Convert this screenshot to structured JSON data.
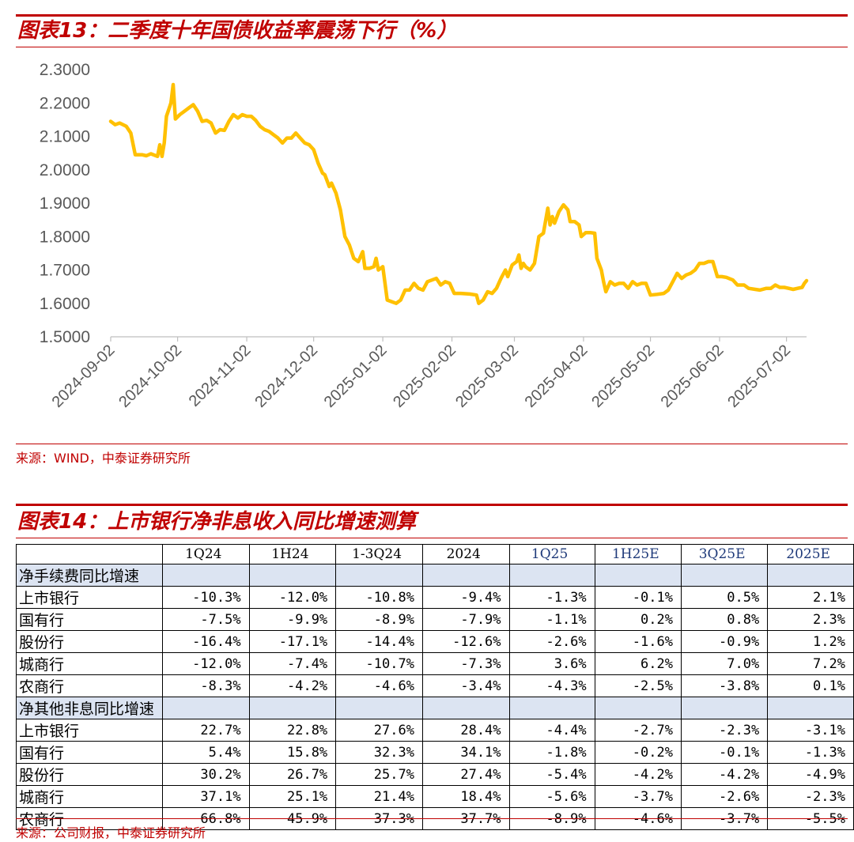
{
  "figure1": {
    "title": "图表13：二季度十年国债收益率震荡下行（%）",
    "source": "来源：WIND，中泰证券研究所"
  },
  "chart_data": {
    "type": "line",
    "series": [
      {
        "name": "",
        "color": "#ffc000",
        "values": [
          [
            "2024-09-02",
            2.145
          ],
          [
            "2024-09-04",
            2.135
          ],
          [
            "2024-09-06",
            2.14
          ],
          [
            "2024-09-09",
            2.13
          ],
          [
            "2024-09-11",
            2.11
          ],
          [
            "2024-09-13",
            2.045
          ],
          [
            "2024-09-16",
            2.045
          ],
          [
            "2024-09-18",
            2.042
          ],
          [
            "2024-09-20",
            2.048
          ],
          [
            "2024-09-23",
            2.04
          ],
          [
            "2024-09-24",
            2.075
          ],
          [
            "2024-09-25",
            2.04
          ],
          [
            "2024-09-26",
            2.08
          ],
          [
            "2024-09-27",
            2.16
          ],
          [
            "2024-09-29",
            2.2
          ],
          [
            "2024-09-30",
            2.255
          ],
          [
            "2024-10-01",
            2.152
          ],
          [
            "2024-10-03",
            2.165
          ],
          [
            "2024-10-05",
            2.175
          ],
          [
            "2024-10-07",
            2.185
          ],
          [
            "2024-10-09",
            2.195
          ],
          [
            "2024-10-11",
            2.175
          ],
          [
            "2024-10-13",
            2.145
          ],
          [
            "2024-10-15",
            2.148
          ],
          [
            "2024-10-17",
            2.14
          ],
          [
            "2024-10-19",
            2.11
          ],
          [
            "2024-10-21",
            2.12
          ],
          [
            "2024-10-23",
            2.118
          ],
          [
            "2024-10-25",
            2.145
          ],
          [
            "2024-10-27",
            2.165
          ],
          [
            "2024-10-29",
            2.155
          ],
          [
            "2024-10-31",
            2.165
          ],
          [
            "2024-11-02",
            2.16
          ],
          [
            "2024-11-04",
            2.16
          ],
          [
            "2024-11-06",
            2.148
          ],
          [
            "2024-11-08",
            2.13
          ],
          [
            "2024-11-10",
            2.12
          ],
          [
            "2024-11-12",
            2.115
          ],
          [
            "2024-11-14",
            2.105
          ],
          [
            "2024-11-16",
            2.095
          ],
          [
            "2024-11-18",
            2.08
          ],
          [
            "2024-11-20",
            2.095
          ],
          [
            "2024-11-22",
            2.095
          ],
          [
            "2024-11-24",
            2.11
          ],
          [
            "2024-11-26",
            2.095
          ],
          [
            "2024-11-28",
            2.08
          ],
          [
            "2024-11-30",
            2.075
          ],
          [
            "2024-12-02",
            2.06
          ],
          [
            "2024-12-04",
            2.02
          ],
          [
            "2024-12-06",
            1.99
          ],
          [
            "2024-12-07",
            1.985
          ],
          [
            "2024-12-09",
            1.95
          ],
          [
            "2024-12-10",
            1.96
          ],
          [
            "2024-12-12",
            1.93
          ],
          [
            "2024-12-14",
            1.88
          ],
          [
            "2024-12-16",
            1.8
          ],
          [
            "2024-12-18",
            1.775
          ],
          [
            "2024-12-20",
            1.735
          ],
          [
            "2024-12-22",
            1.725
          ],
          [
            "2024-12-24",
            1.755
          ],
          [
            "2024-12-25",
            1.705
          ],
          [
            "2024-12-27",
            1.705
          ],
          [
            "2024-12-29",
            1.71
          ],
          [
            "2024-12-30",
            1.735
          ],
          [
            "2024-12-31",
            1.7
          ],
          [
            "2025-01-02",
            1.71
          ],
          [
            "2025-01-03",
            1.66
          ],
          [
            "2025-01-04",
            1.61
          ],
          [
            "2025-01-06",
            1.605
          ],
          [
            "2025-01-08",
            1.6
          ],
          [
            "2025-01-10",
            1.61
          ],
          [
            "2025-01-12",
            1.64
          ],
          [
            "2025-01-14",
            1.64
          ],
          [
            "2025-01-16",
            1.66
          ],
          [
            "2025-01-18",
            1.645
          ],
          [
            "2025-01-20",
            1.64
          ],
          [
            "2025-01-22",
            1.665
          ],
          [
            "2025-01-24",
            1.67
          ],
          [
            "2025-01-26",
            1.675
          ],
          [
            "2025-01-28",
            1.655
          ],
          [
            "2025-01-30",
            1.665
          ],
          [
            "2025-02-01",
            1.66
          ],
          [
            "2025-02-03",
            1.63
          ],
          [
            "2025-02-06",
            1.63
          ],
          [
            "2025-02-10",
            1.628
          ],
          [
            "2025-02-13",
            1.625
          ],
          [
            "2025-02-14",
            1.6
          ],
          [
            "2025-02-16",
            1.61
          ],
          [
            "2025-02-18",
            1.635
          ],
          [
            "2025-02-20",
            1.63
          ],
          [
            "2025-02-22",
            1.645
          ],
          [
            "2025-02-24",
            1.675
          ],
          [
            "2025-02-26",
            1.7
          ],
          [
            "2025-02-27",
            1.68
          ],
          [
            "2025-03-01",
            1.715
          ],
          [
            "2025-03-03",
            1.725
          ],
          [
            "2025-03-04",
            1.745
          ],
          [
            "2025-03-05",
            1.705
          ],
          [
            "2025-03-06",
            1.72
          ],
          [
            "2025-03-07",
            1.71
          ],
          [
            "2025-03-09",
            1.7
          ],
          [
            "2025-03-11",
            1.72
          ],
          [
            "2025-03-13",
            1.8
          ],
          [
            "2025-03-15",
            1.81
          ],
          [
            "2025-03-17",
            1.885
          ],
          [
            "2025-03-18",
            1.835
          ],
          [
            "2025-03-19",
            1.86
          ],
          [
            "2025-03-20",
            1.84
          ],
          [
            "2025-03-22",
            1.875
          ],
          [
            "2025-03-24",
            1.895
          ],
          [
            "2025-03-26",
            1.88
          ],
          [
            "2025-03-27",
            1.845
          ],
          [
            "2025-03-29",
            1.845
          ],
          [
            "2025-03-31",
            1.835
          ],
          [
            "2025-04-01",
            1.8
          ],
          [
            "2025-04-03",
            1.812
          ],
          [
            "2025-04-05",
            1.812
          ],
          [
            "2025-04-07",
            1.81
          ],
          [
            "2025-04-08",
            1.735
          ],
          [
            "2025-04-10",
            1.7
          ],
          [
            "2025-04-11",
            1.665
          ],
          [
            "2025-04-12",
            1.635
          ],
          [
            "2025-04-14",
            1.665
          ],
          [
            "2025-04-16",
            1.655
          ],
          [
            "2025-04-18",
            1.66
          ],
          [
            "2025-04-20",
            1.66
          ],
          [
            "2025-04-22",
            1.645
          ],
          [
            "2025-04-24",
            1.665
          ],
          [
            "2025-04-26",
            1.655
          ],
          [
            "2025-04-28",
            1.66
          ],
          [
            "2025-04-30",
            1.66
          ],
          [
            "2025-05-02",
            1.625
          ],
          [
            "2025-05-05",
            1.627
          ],
          [
            "2025-05-08",
            1.63
          ],
          [
            "2025-05-10",
            1.64
          ],
          [
            "2025-05-12",
            1.665
          ],
          [
            "2025-05-14",
            1.69
          ],
          [
            "2025-05-16",
            1.675
          ],
          [
            "2025-05-18",
            1.685
          ],
          [
            "2025-05-20",
            1.69
          ],
          [
            "2025-05-22",
            1.7
          ],
          [
            "2025-05-24",
            1.72
          ],
          [
            "2025-05-26",
            1.72
          ],
          [
            "2025-05-28",
            1.725
          ],
          [
            "2025-05-30",
            1.725
          ],
          [
            "2025-06-01",
            1.68
          ],
          [
            "2025-06-03",
            1.68
          ],
          [
            "2025-06-05",
            1.678
          ],
          [
            "2025-06-08",
            1.67
          ],
          [
            "2025-06-10",
            1.655
          ],
          [
            "2025-06-13",
            1.655
          ],
          [
            "2025-06-15",
            1.645
          ],
          [
            "2025-06-18",
            1.642
          ],
          [
            "2025-06-20",
            1.64
          ],
          [
            "2025-06-23",
            1.645
          ],
          [
            "2025-06-25",
            1.645
          ],
          [
            "2025-06-27",
            1.655
          ],
          [
            "2025-06-29",
            1.648
          ],
          [
            "2025-07-01",
            1.648
          ],
          [
            "2025-07-03",
            1.645
          ],
          [
            "2025-07-05",
            1.642
          ],
          [
            "2025-07-07",
            1.645
          ],
          [
            "2025-07-09",
            1.648
          ],
          [
            "2025-07-10",
            1.66
          ],
          [
            "2025-07-11",
            1.668
          ]
        ]
      }
    ],
    "x_tick_labels": [
      "2024-09-02",
      "2024-10-02",
      "2024-11-02",
      "2024-12-02",
      "2025-01-02",
      "2025-02-02",
      "2025-03-02",
      "2025-04-02",
      "2025-05-02",
      "2025-06-02",
      "2025-07-02"
    ],
    "y_tick_labels": [
      "2.3000",
      "2.2000",
      "2.1000",
      "2.0000",
      "1.9000",
      "1.8000",
      "1.7000",
      "1.6000",
      "1.5000"
    ],
    "ylim": [
      1.5,
      2.3
    ],
    "xlim": [
      "2024-09-02",
      "2025-07-11"
    ],
    "title": "",
    "xlabel": "",
    "ylabel": "",
    "grid": false,
    "legend": "none"
  },
  "figure2": {
    "title": "图表14：上市银行净非息收入同比增速测算",
    "source": "来源：公司财报，中泰证券研究所",
    "table": {
      "header": [
        "",
        "1Q24",
        "1H24",
        "1-3Q24",
        "2024",
        "1Q25",
        "1H25E",
        "3Q25E",
        "2025E"
      ],
      "groups": [
        {
          "label": "净手续费同比增速",
          "rows": [
            {
              "label": "上市银行",
              "values": [
                "-10.3%",
                "-12.0%",
                "-10.8%",
                "-9.4%",
                "-1.3%",
                "-0.1%",
                "0.5%",
                "2.1%"
              ]
            },
            {
              "label": "国有行",
              "values": [
                "-7.5%",
                "-9.9%",
                "-8.9%",
                "-7.9%",
                "-1.1%",
                "0.2%",
                "0.8%",
                "2.3%"
              ]
            },
            {
              "label": "股份行",
              "values": [
                "-16.4%",
                "-17.1%",
                "-14.4%",
                "-12.6%",
                "-2.6%",
                "-1.6%",
                "-0.9%",
                "1.2%"
              ]
            },
            {
              "label": "城商行",
              "values": [
                "-12.0%",
                "-7.4%",
                "-10.7%",
                "-7.3%",
                "3.6%",
                "6.2%",
                "7.0%",
                "7.2%"
              ]
            },
            {
              "label": "农商行",
              "values": [
                "-8.3%",
                "-4.2%",
                "-4.6%",
                "-3.4%",
                "-4.3%",
                "-2.5%",
                "-3.8%",
                "0.1%"
              ]
            }
          ]
        },
        {
          "label": "净其他非息同比增速",
          "rows": [
            {
              "label": "上市银行",
              "values": [
                "22.7%",
                "22.8%",
                "27.6%",
                "28.4%",
                "-4.4%",
                "-2.7%",
                "-2.3%",
                "-3.1%"
              ]
            },
            {
              "label": "国有行",
              "values": [
                "5.4%",
                "15.8%",
                "32.3%",
                "34.1%",
                "-1.8%",
                "-0.2%",
                "-0.1%",
                "-1.3%"
              ]
            },
            {
              "label": "股份行",
              "values": [
                "30.2%",
                "26.7%",
                "25.7%",
                "27.4%",
                "-5.4%",
                "-4.2%",
                "-4.2%",
                "-4.9%"
              ]
            },
            {
              "label": "城商行",
              "values": [
                "37.1%",
                "25.1%",
                "21.4%",
                "18.4%",
                "-5.6%",
                "-3.7%",
                "-2.6%",
                "-2.3%"
              ]
            },
            {
              "label": "农商行",
              "values": [
                "66.8%",
                "45.9%",
                "37.3%",
                "37.7%",
                "-8.9%",
                "-4.6%",
                "-3.7%",
                "-5.5%"
              ]
            }
          ]
        }
      ]
    }
  }
}
